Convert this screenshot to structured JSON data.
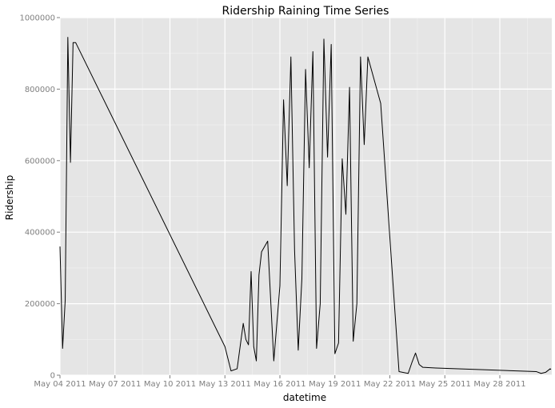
{
  "chart_data": {
    "type": "line",
    "title": "Ridership Raining Time Series",
    "xlabel": "datetime",
    "ylabel": "Ridership",
    "x_tick_labels": [
      "May 04 2011",
      "May 07 2011",
      "May 10 2011",
      "May 13 2011",
      "May 16 2011",
      "May 19 2011",
      "May 22 2011",
      "May 25 2011",
      "May 28 2011"
    ],
    "y_tick_labels": [
      "0",
      "200000",
      "400000",
      "600000",
      "800000",
      "1000000"
    ],
    "x_range": [
      "2011-05-04",
      "2011-05-31"
    ],
    "ylim": [
      0,
      1000000
    ],
    "grid": true,
    "colors": {
      "panel_background": "#e5e5e5",
      "grid_major": "#ffffff",
      "grid_minor": "#f2f2f2",
      "line": "#000000",
      "tick_label": "#7f7f7f"
    },
    "series": [
      {
        "x": [
          "2011-05-04",
          "2011-05-04",
          "2011-05-04",
          "2011-05-04",
          "2011-05-04",
          "2011-05-04",
          "2011-05-04",
          "2011-05-13",
          "2011-05-13",
          "2011-05-13",
          "2011-05-14",
          "2011-05-14",
          "2011-05-14",
          "2011-05-14",
          "2011-05-14",
          "2011-05-14",
          "2011-05-14",
          "2011-05-15",
          "2011-05-15",
          "2011-05-15",
          "2011-05-16",
          "2011-05-16",
          "2011-05-16",
          "2011-05-16",
          "2011-05-16",
          "2011-05-17",
          "2011-05-17",
          "2011-05-17",
          "2011-05-17",
          "2011-05-17",
          "2011-05-18",
          "2011-05-18",
          "2011-05-18",
          "2011-05-18",
          "2011-05-18",
          "2011-05-19",
          "2011-05-19",
          "2011-05-19",
          "2011-05-19",
          "2011-05-19",
          "2011-05-20",
          "2011-05-20",
          "2011-05-20",
          "2011-05-20",
          "2011-05-20",
          "2011-05-21",
          "2011-05-22",
          "2011-05-23",
          "2011-05-23",
          "2011-05-23",
          "2011-05-23",
          "2011-05-23",
          "2011-05-24",
          "2011-05-30",
          "2011-05-30",
          "2011-05-30",
          "2011-05-30",
          "2011-05-31"
        ],
        "y": [
          360000,
          75000,
          210000,
          945000,
          595000,
          930000,
          930000,
          80000,
          12000,
          18000,
          145000,
          100000,
          85000,
          290000,
          80000,
          40000,
          280000,
          345000,
          375000,
          40000,
          250000,
          770000,
          530000,
          890000,
          350000,
          70000,
          270000,
          855000,
          580000,
          905000,
          75000,
          200000,
          940000,
          610000,
          925000,
          60000,
          90000,
          605000,
          450000,
          805000,
          95000,
          200000,
          890000,
          645000,
          890000,
          760000,
          10000,
          5000,
          35000,
          62000,
          30000,
          22000,
          20000,
          10000,
          5000,
          8000,
          18000,
          16000
        ]
      }
    ]
  }
}
